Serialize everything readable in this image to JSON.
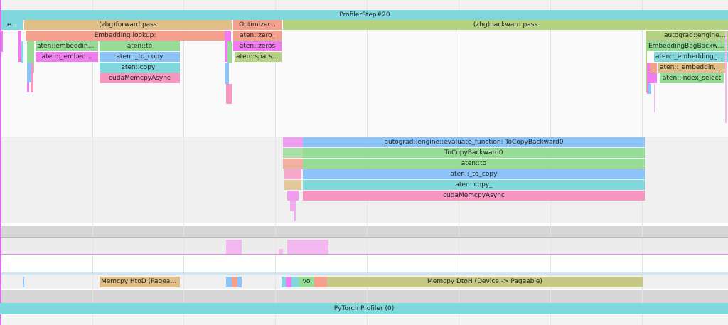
{
  "colors": {
    "teal": "#80d8dc",
    "tan": "#e0be87",
    "salmon": "#f4a08c",
    "olive": "#b4d282",
    "green": "#96dc96",
    "blue": "#8cc4f8",
    "pink": "#f896c2",
    "magenta": "#f07cf0",
    "khaki": "#c8c886",
    "lavender": "#f4b8f0",
    "grey": "#d2d2d2",
    "lightgrey": "#ececec"
  },
  "trace": {
    "profiler_step": "ProfilerStep#20",
    "e_slice": "e...",
    "forward_pass": "(zhg)forward pass",
    "optimizer": "Optimizer...",
    "backward_pass": "(zhg)backward pass",
    "embedding_lookup": "Embedding lookup:",
    "aten_embedding_bag": "aten::embedding_bag",
    "aten_embed_trunc": "aten::_embed...",
    "aten_to": "aten::to",
    "aten_to_copy": "aten::_to_copy",
    "aten_copy": "aten::copy_",
    "cuda_memcpy_async": "cudaMemcpyAsync",
    "aten_zero": "aten::zero_",
    "aten_zeros": "aten::zeros",
    "aten_sparse": "aten::sparse_...",
    "autograd_evaluate_short": "autograd::engine::evalu",
    "embedding_bag_backward": "EmbeddingBagBackward0",
    "aten_embedding_b": "aten::_embedding_b...",
    "aten_embedding_trunc2": "aten::_embedding_...",
    "aten_index_select": "aten::index_select",
    "autograd_evaluate_full": "autograd::engine::evaluate_function: ToCopyBackward0",
    "to_copy_backward": "ToCopyBackward0",
    "aten_to_2": "aten::to",
    "aten_to_copy_2": "aten::_to_copy",
    "aten_copy_2": "aten::copy_",
    "cuda_memcpy_async_2": "cudaMemcpyAsync",
    "memcpy_htod": "Memcpy HtoD (Pageable...",
    "vo_slice": "vo",
    "memcpy_dtoh": "Memcpy DtoH (Device -> Pageable)",
    "pytorch_profiler": "PyTorch Profiler (0)"
  }
}
